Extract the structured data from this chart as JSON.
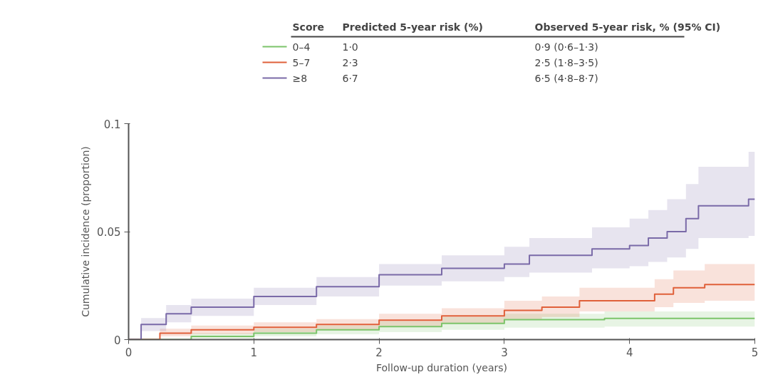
{
  "chart_data": {
    "type": "step",
    "xlabel": "Follow-up duration (years)",
    "ylabel": "Cumulative incidence (proportion)",
    "legend_title": "Score",
    "legend": "top left",
    "annotations": [
      "Predicted 5-year risk (%)",
      "Observed 5-year risk, % (95% CI)",
      "1·0",
      "0·9 (0·6–1·3)",
      "2·3",
      "2·5 (1·8–3·5)",
      "6·7",
      "6·5 (4·8–8·7)"
    ],
    "xlim": [
      0,
      5
    ],
    "ylim": [
      0,
      0.1
    ],
    "xticks": [
      0,
      1,
      2,
      3,
      4,
      5
    ],
    "yticks": [
      0,
      0.05,
      0.1
    ],
    "grid": false,
    "marker": "none",
    "line_style": "solid",
    "series": [
      {
        "name": "0–4",
        "color": "#7cc46a",
        "x": [
          0,
          0.5,
          1,
          1.5,
          2,
          2.5,
          3,
          3.4,
          3.8,
          4.5,
          5
        ],
        "values": [
          0,
          0.0015,
          0.003,
          0.0045,
          0.006,
          0.0075,
          0.0092,
          0.0092,
          0.0098,
          0.0098,
          0.0098
        ],
        "lower": [
          0,
          0.0005,
          0.0015,
          0.0025,
          0.0035,
          0.0045,
          0.0055,
          0.0055,
          0.006,
          0.006,
          0.006
        ],
        "upper": [
          0,
          0.003,
          0.005,
          0.0065,
          0.0085,
          0.0105,
          0.012,
          0.012,
          0.013,
          0.013,
          0.013
        ]
      },
      {
        "name": "5–7",
        "color": "#e0603a",
        "x": [
          0,
          0.25,
          0.5,
          1,
          1.5,
          2,
          2.5,
          3,
          3.3,
          3.6,
          4.2,
          4.35,
          4.6,
          5
        ],
        "values": [
          0,
          0.003,
          0.0045,
          0.0057,
          0.007,
          0.009,
          0.011,
          0.0135,
          0.015,
          0.018,
          0.021,
          0.024,
          0.0255,
          0.0255
        ],
        "lower": [
          0,
          0.0015,
          0.0025,
          0.0035,
          0.0045,
          0.006,
          0.0075,
          0.0095,
          0.0105,
          0.013,
          0.015,
          0.017,
          0.018,
          0.018
        ],
        "upper": [
          0,
          0.005,
          0.0065,
          0.008,
          0.0095,
          0.012,
          0.0145,
          0.018,
          0.02,
          0.024,
          0.028,
          0.032,
          0.035,
          0.035
        ]
      },
      {
        "name": "≥8",
        "color": "#7a6aa8",
        "x": [
          0,
          0.1,
          0.3,
          0.5,
          1,
          1.5,
          2,
          2.5,
          3,
          3.2,
          3.7,
          4.0,
          4.15,
          4.3,
          4.45,
          4.55,
          4.95,
          5
        ],
        "values": [
          0,
          0.007,
          0.012,
          0.015,
          0.02,
          0.0245,
          0.03,
          0.033,
          0.035,
          0.039,
          0.042,
          0.0436,
          0.047,
          0.05,
          0.056,
          0.062,
          0.065,
          0.065
        ],
        "lower": [
          0,
          0.004,
          0.008,
          0.011,
          0.016,
          0.02,
          0.025,
          0.027,
          0.029,
          0.031,
          0.033,
          0.034,
          0.036,
          0.038,
          0.042,
          0.047,
          0.048,
          0.048
        ],
        "upper": [
          0,
          0.01,
          0.016,
          0.019,
          0.024,
          0.029,
          0.035,
          0.039,
          0.043,
          0.047,
          0.052,
          0.056,
          0.06,
          0.065,
          0.072,
          0.08,
          0.087,
          0.087
        ]
      }
    ]
  }
}
